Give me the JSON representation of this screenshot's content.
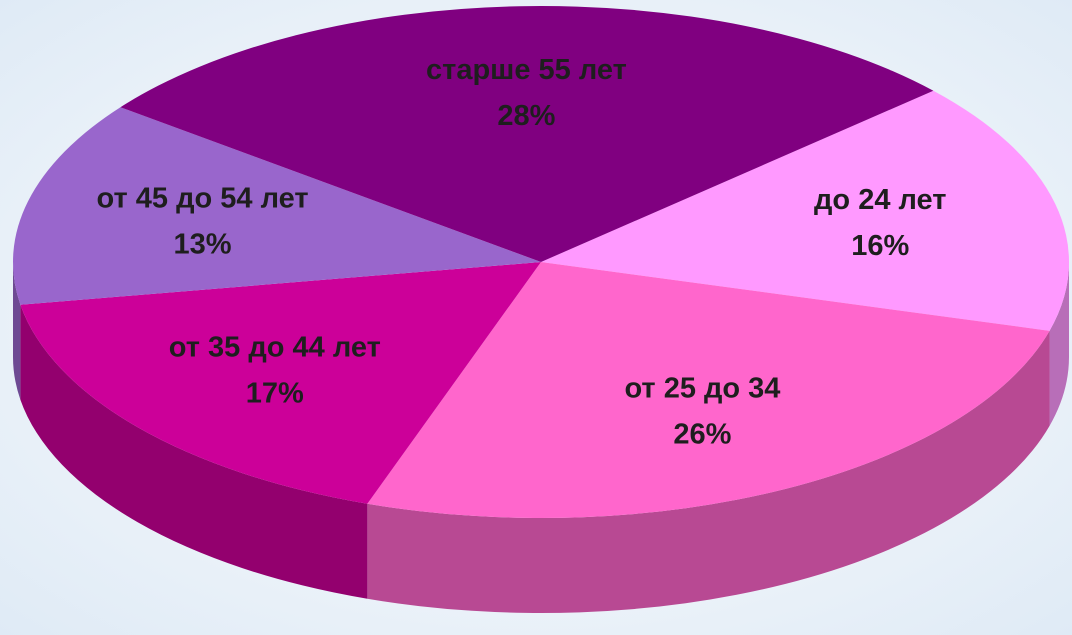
{
  "chart_data": {
    "type": "pie",
    "categories": [
      "до 24 лет",
      "от 25 до 34",
      "от 35 до 44 лет",
      "от 45 до 54 лет",
      "старше 55 лет"
    ],
    "values": [
      16,
      26,
      17,
      13,
      28
    ],
    "value_labels": [
      "16%",
      "26%",
      "17%",
      "13%",
      "28%"
    ],
    "colors": [
      "#ff99ff",
      "#ff66cc",
      "#cc0099",
      "#9966cc",
      "#800080"
    ]
  }
}
